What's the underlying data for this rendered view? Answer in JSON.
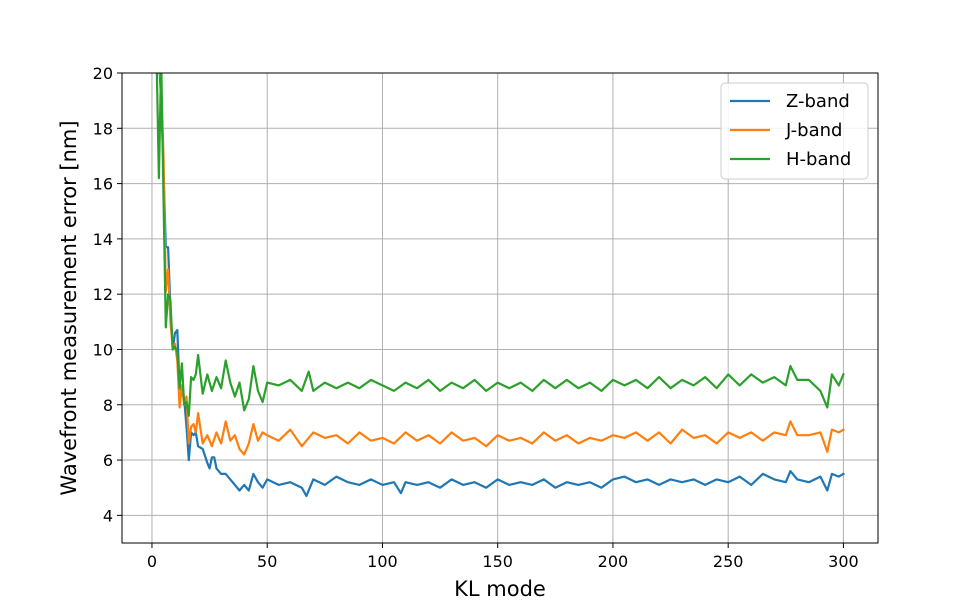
{
  "chart_data": {
    "type": "line",
    "title": "",
    "xlabel": "KL mode",
    "ylabel": "Wavefront measurement error [nm]",
    "xlim": [
      -13,
      315
    ],
    "ylim": [
      3,
      20
    ],
    "xticks": [
      0,
      50,
      100,
      150,
      200,
      250,
      300
    ],
    "yticks": [
      4,
      6,
      8,
      10,
      12,
      14,
      16,
      18,
      20
    ],
    "grid": true,
    "legend_position": "top-right",
    "series": [
      {
        "name": "Z-band",
        "color": "#1f77b4",
        "points": [
          [
            2,
            20.5
          ],
          [
            3,
            20.5
          ],
          [
            4,
            19.0
          ],
          [
            5,
            16.5
          ],
          [
            6,
            13.7
          ],
          [
            7,
            13.7
          ],
          [
            8,
            11.5
          ],
          [
            9,
            10.0
          ],
          [
            10,
            10.6
          ],
          [
            11,
            10.7
          ],
          [
            12,
            8.6
          ],
          [
            13,
            8.5
          ],
          [
            14,
            8.2
          ],
          [
            15,
            7.2
          ],
          [
            16,
            6.0
          ],
          [
            17,
            7.0
          ],
          [
            18,
            6.9
          ],
          [
            19,
            7.0
          ],
          [
            20,
            6.5
          ],
          [
            22,
            6.4
          ],
          [
            24,
            5.9
          ],
          [
            25,
            5.7
          ],
          [
            26,
            6.1
          ],
          [
            27,
            6.1
          ],
          [
            28,
            5.7
          ],
          [
            30,
            5.5
          ],
          [
            32,
            5.5
          ],
          [
            34,
            5.3
          ],
          [
            36,
            5.1
          ],
          [
            38,
            4.9
          ],
          [
            40,
            5.1
          ],
          [
            42,
            4.9
          ],
          [
            44,
            5.5
          ],
          [
            46,
            5.2
          ],
          [
            48,
            5.0
          ],
          [
            50,
            5.3
          ],
          [
            55,
            5.1
          ],
          [
            60,
            5.2
          ],
          [
            65,
            5.0
          ],
          [
            67,
            4.7
          ],
          [
            70,
            5.3
          ],
          [
            75,
            5.1
          ],
          [
            80,
            5.4
          ],
          [
            85,
            5.2
          ],
          [
            90,
            5.1
          ],
          [
            95,
            5.3
          ],
          [
            100,
            5.1
          ],
          [
            105,
            5.2
          ],
          [
            108,
            4.8
          ],
          [
            110,
            5.2
          ],
          [
            115,
            5.1
          ],
          [
            120,
            5.2
          ],
          [
            125,
            5.0
          ],
          [
            130,
            5.3
          ],
          [
            135,
            5.1
          ],
          [
            140,
            5.2
          ],
          [
            145,
            5.0
          ],
          [
            150,
            5.3
          ],
          [
            155,
            5.1
          ],
          [
            160,
            5.2
          ],
          [
            165,
            5.1
          ],
          [
            170,
            5.3
          ],
          [
            175,
            5.0
          ],
          [
            180,
            5.2
          ],
          [
            185,
            5.1
          ],
          [
            190,
            5.2
          ],
          [
            195,
            5.0
          ],
          [
            200,
            5.3
          ],
          [
            205,
            5.4
          ],
          [
            210,
            5.2
          ],
          [
            215,
            5.3
          ],
          [
            220,
            5.1
          ],
          [
            225,
            5.3
          ],
          [
            230,
            5.2
          ],
          [
            235,
            5.3
          ],
          [
            240,
            5.1
          ],
          [
            245,
            5.3
          ],
          [
            250,
            5.2
          ],
          [
            255,
            5.4
          ],
          [
            260,
            5.1
          ],
          [
            265,
            5.5
          ],
          [
            270,
            5.3
          ],
          [
            275,
            5.2
          ],
          [
            277,
            5.6
          ],
          [
            280,
            5.3
          ],
          [
            285,
            5.2
          ],
          [
            290,
            5.4
          ],
          [
            293,
            4.9
          ],
          [
            295,
            5.5
          ],
          [
            298,
            5.4
          ],
          [
            300,
            5.5
          ]
        ]
      },
      {
        "name": "J-band",
        "color": "#ff7f0e",
        "points": [
          [
            2,
            20.5
          ],
          [
            3,
            20.5
          ],
          [
            4,
            19.5
          ],
          [
            5,
            17.0
          ],
          [
            6,
            12.1
          ],
          [
            7,
            12.9
          ],
          [
            8,
            11.0
          ],
          [
            9,
            10.1
          ],
          [
            10,
            10.2
          ],
          [
            11,
            9.6
          ],
          [
            12,
            7.9
          ],
          [
            13,
            8.7
          ],
          [
            14,
            8.0
          ],
          [
            15,
            8.3
          ],
          [
            16,
            6.6
          ],
          [
            17,
            7.2
          ],
          [
            18,
            7.3
          ],
          [
            19,
            7.0
          ],
          [
            20,
            7.7
          ],
          [
            22,
            6.6
          ],
          [
            24,
            6.9
          ],
          [
            26,
            6.5
          ],
          [
            28,
            7.0
          ],
          [
            30,
            6.6
          ],
          [
            32,
            7.4
          ],
          [
            34,
            6.7
          ],
          [
            36,
            6.9
          ],
          [
            38,
            6.4
          ],
          [
            40,
            6.2
          ],
          [
            42,
            6.6
          ],
          [
            44,
            7.3
          ],
          [
            46,
            6.7
          ],
          [
            48,
            7.0
          ],
          [
            50,
            6.9
          ],
          [
            55,
            6.7
          ],
          [
            60,
            7.1
          ],
          [
            65,
            6.5
          ],
          [
            70,
            7.0
          ],
          [
            75,
            6.8
          ],
          [
            80,
            6.9
          ],
          [
            85,
            6.6
          ],
          [
            90,
            7.0
          ],
          [
            95,
            6.7
          ],
          [
            100,
            6.8
          ],
          [
            105,
            6.6
          ],
          [
            110,
            7.0
          ],
          [
            115,
            6.7
          ],
          [
            120,
            6.9
          ],
          [
            125,
            6.6
          ],
          [
            130,
            7.0
          ],
          [
            135,
            6.7
          ],
          [
            140,
            6.8
          ],
          [
            145,
            6.5
          ],
          [
            150,
            6.9
          ],
          [
            155,
            6.7
          ],
          [
            160,
            6.8
          ],
          [
            165,
            6.6
          ],
          [
            170,
            7.0
          ],
          [
            175,
            6.7
          ],
          [
            180,
            6.9
          ],
          [
            185,
            6.6
          ],
          [
            190,
            6.8
          ],
          [
            195,
            6.7
          ],
          [
            200,
            6.9
          ],
          [
            205,
            6.8
          ],
          [
            210,
            7.0
          ],
          [
            215,
            6.7
          ],
          [
            220,
            7.0
          ],
          [
            225,
            6.6
          ],
          [
            230,
            7.1
          ],
          [
            235,
            6.8
          ],
          [
            240,
            6.9
          ],
          [
            245,
            6.6
          ],
          [
            250,
            7.0
          ],
          [
            255,
            6.8
          ],
          [
            260,
            7.0
          ],
          [
            265,
            6.7
          ],
          [
            270,
            7.0
          ],
          [
            275,
            6.9
          ],
          [
            277,
            7.4
          ],
          [
            280,
            6.9
          ],
          [
            285,
            6.9
          ],
          [
            290,
            7.0
          ],
          [
            293,
            6.3
          ],
          [
            295,
            7.1
          ],
          [
            298,
            7.0
          ],
          [
            300,
            7.1
          ]
        ]
      },
      {
        "name": "H-band",
        "color": "#2ca02c",
        "points": [
          [
            2,
            20.5
          ],
          [
            3,
            16.2
          ],
          [
            4,
            20.5
          ],
          [
            5,
            15.5
          ],
          [
            6,
            10.8
          ],
          [
            7,
            12.0
          ],
          [
            8,
            11.8
          ],
          [
            9,
            10.0
          ],
          [
            10,
            10.1
          ],
          [
            11,
            9.9
          ],
          [
            12,
            8.6
          ],
          [
            13,
            9.5
          ],
          [
            14,
            8.0
          ],
          [
            15,
            8.1
          ],
          [
            16,
            7.6
          ],
          [
            17,
            9.0
          ],
          [
            18,
            8.9
          ],
          [
            19,
            9.1
          ],
          [
            20,
            9.8
          ],
          [
            22,
            8.4
          ],
          [
            24,
            9.1
          ],
          [
            26,
            8.5
          ],
          [
            28,
            9.0
          ],
          [
            30,
            8.6
          ],
          [
            32,
            9.6
          ],
          [
            34,
            8.8
          ],
          [
            36,
            8.3
          ],
          [
            38,
            8.8
          ],
          [
            40,
            7.8
          ],
          [
            42,
            8.2
          ],
          [
            44,
            9.4
          ],
          [
            46,
            8.5
          ],
          [
            48,
            8.1
          ],
          [
            50,
            8.8
          ],
          [
            55,
            8.7
          ],
          [
            60,
            8.9
          ],
          [
            65,
            8.5
          ],
          [
            68,
            9.2
          ],
          [
            70,
            8.5
          ],
          [
            75,
            8.8
          ],
          [
            80,
            8.6
          ],
          [
            85,
            8.8
          ],
          [
            90,
            8.6
          ],
          [
            95,
            8.9
          ],
          [
            100,
            8.7
          ],
          [
            105,
            8.5
          ],
          [
            110,
            8.8
          ],
          [
            115,
            8.6
          ],
          [
            120,
            8.9
          ],
          [
            125,
            8.5
          ],
          [
            130,
            8.8
          ],
          [
            135,
            8.6
          ],
          [
            140,
            8.9
          ],
          [
            145,
            8.5
          ],
          [
            150,
            8.8
          ],
          [
            155,
            8.6
          ],
          [
            160,
            8.8
          ],
          [
            165,
            8.5
          ],
          [
            170,
            8.9
          ],
          [
            175,
            8.6
          ],
          [
            180,
            8.9
          ],
          [
            185,
            8.6
          ],
          [
            190,
            8.8
          ],
          [
            195,
            8.5
          ],
          [
            200,
            8.9
          ],
          [
            205,
            8.7
          ],
          [
            210,
            8.9
          ],
          [
            215,
            8.6
          ],
          [
            220,
            9.0
          ],
          [
            225,
            8.6
          ],
          [
            230,
            8.9
          ],
          [
            235,
            8.7
          ],
          [
            240,
            9.0
          ],
          [
            245,
            8.6
          ],
          [
            250,
            9.1
          ],
          [
            255,
            8.7
          ],
          [
            260,
            9.1
          ],
          [
            265,
            8.8
          ],
          [
            270,
            9.0
          ],
          [
            275,
            8.7
          ],
          [
            277,
            9.4
          ],
          [
            280,
            8.9
          ],
          [
            285,
            8.9
          ],
          [
            290,
            8.5
          ],
          [
            293,
            7.9
          ],
          [
            295,
            9.1
          ],
          [
            298,
            8.7
          ],
          [
            300,
            9.1
          ]
        ]
      }
    ]
  }
}
